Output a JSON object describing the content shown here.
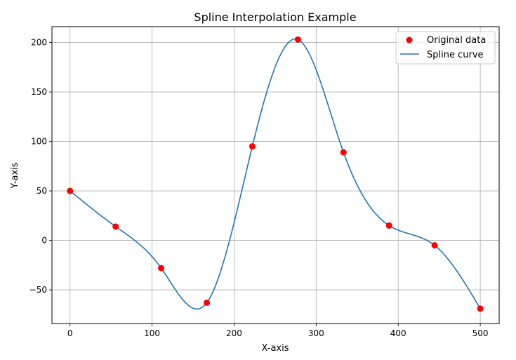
{
  "chart_data": {
    "type": "line",
    "title": "Spline Interpolation Example",
    "xlabel": "X-axis",
    "ylabel": "Y-axis",
    "xlim": [
      -22,
      523
    ],
    "ylim": [
      -84,
      216
    ],
    "xticks": [
      0,
      100,
      200,
      300,
      400,
      500
    ],
    "yticks": [
      -50,
      0,
      50,
      100,
      150,
      200
    ],
    "xtick_labels": [
      "0",
      "100",
      "200",
      "300",
      "400",
      "500"
    ],
    "ytick_labels": [
      "−50",
      "0",
      "50",
      "100",
      "150",
      "200"
    ],
    "grid": true,
    "legend_position": "top-right",
    "series": [
      {
        "name": "Original data",
        "kind": "scatter",
        "color": "#ff0000",
        "x": [
          0,
          55.6,
          111.1,
          166.7,
          222.2,
          277.8,
          333.3,
          388.9,
          444.4,
          500
        ],
        "y": [
          50,
          14,
          -28,
          -63,
          95,
          203,
          89,
          15,
          -5,
          -69
        ]
      },
      {
        "name": "Spline curve",
        "kind": "line",
        "color": "#1f77b4",
        "interpolation": "natural cubic spline through original data"
      }
    ]
  }
}
